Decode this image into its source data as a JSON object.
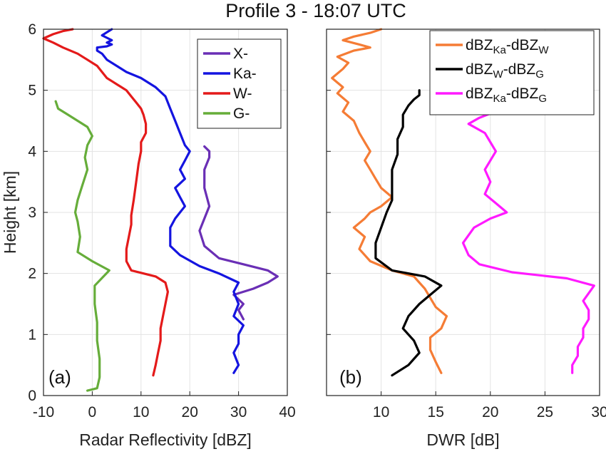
{
  "title": "Profile 3 - 18:07 UTC",
  "ylabel": "Height [km]",
  "colors": {
    "X": "#6a2fb5",
    "Ka": "#1414e0",
    "W": "#e41a1a",
    "G": "#66ad3a",
    "dwr_ka_w": "#f57c35",
    "dwr_w_g": "#000000",
    "dwr_ka_g": "#ff1aff"
  },
  "chart_data": [
    {
      "type": "line",
      "panel_label": "(a)",
      "xlabel": "Radar Reflectivity [dBZ]",
      "ylabel": "Height [km]",
      "xlim": [
        -10,
        40
      ],
      "ylim": [
        0,
        6
      ],
      "xticks": [
        "-10",
        "0",
        "10",
        "20",
        "30",
        "40"
      ],
      "yticks": [
        "0",
        "1",
        "2",
        "3",
        "4",
        "5",
        "6"
      ],
      "grid": true,
      "legend_position": "top-right",
      "series": [
        {
          "name": "X-",
          "color": "#6a2fb5",
          "x": [
            31,
            30,
            31,
            29,
            33,
            36,
            38,
            36,
            31,
            26,
            23,
            22,
            23,
            24,
            23,
            23,
            24,
            24,
            23
          ],
          "y": [
            1.25,
            1.4,
            1.5,
            1.65,
            1.75,
            1.85,
            1.95,
            2.05,
            2.15,
            2.25,
            2.45,
            2.7,
            2.9,
            3.1,
            3.4,
            3.7,
            3.9,
            4.0,
            4.08
          ]
        },
        {
          "name": "Ka-",
          "color": "#1414e0",
          "x": [
            29,
            30,
            29,
            30,
            30,
            31,
            29,
            30,
            29,
            30,
            26,
            22,
            18,
            16,
            16,
            16,
            17,
            18,
            19,
            18,
            17,
            19,
            18,
            19,
            20,
            19,
            18,
            17,
            16,
            15,
            13,
            10,
            7,
            5,
            3,
            2,
            1,
            1,
            3,
            4,
            3,
            4,
            3,
            2,
            3,
            4
          ],
          "y": [
            0.37,
            0.5,
            0.7,
            0.85,
            1.0,
            1.15,
            1.3,
            1.5,
            1.7,
            1.85,
            2.0,
            2.12,
            2.3,
            2.45,
            2.6,
            2.75,
            2.9,
            3.0,
            3.1,
            3.25,
            3.4,
            3.55,
            3.7,
            3.85,
            4.0,
            4.1,
            4.3,
            4.5,
            4.7,
            4.9,
            5.05,
            5.2,
            5.3,
            5.4,
            5.5,
            5.6,
            5.65,
            5.7,
            5.72,
            5.75,
            5.78,
            5.82,
            5.86,
            5.9,
            5.95,
            6.0
          ]
        },
        {
          "name": "W-",
          "color": "#e41a1a",
          "x": [
            12.5,
            13,
            13.5,
            14,
            14,
            14.5,
            15,
            15.5,
            15,
            13,
            8,
            7,
            7,
            7.5,
            8,
            8,
            8.5,
            9,
            9.5,
            10,
            10,
            11,
            11,
            10.5,
            10,
            9,
            8,
            7,
            6,
            5,
            4,
            3,
            2,
            1,
            -1,
            -3,
            -6,
            -8,
            -10,
            -8,
            -6,
            -4
          ],
          "y": [
            0.33,
            0.5,
            0.7,
            0.9,
            1.1,
            1.3,
            1.5,
            1.7,
            1.85,
            1.95,
            2.05,
            2.2,
            2.4,
            2.6,
            2.8,
            2.95,
            3.2,
            3.5,
            3.8,
            4.0,
            4.15,
            4.3,
            4.45,
            4.6,
            4.7,
            4.8,
            4.9,
            5.0,
            5.05,
            5.1,
            5.15,
            5.2,
            5.3,
            5.4,
            5.5,
            5.6,
            5.7,
            5.78,
            5.85,
            5.92,
            5.97,
            6.0
          ]
        },
        {
          "name": "G-",
          "color": "#66ad3a",
          "x": [
            -1,
            1,
            1.5,
            1.5,
            1,
            1,
            0.5,
            0.5,
            3.5,
            0,
            -3,
            -2.5,
            -3,
            -3.5,
            -3,
            -2,
            -1,
            -1.5,
            -1,
            0,
            -1,
            -3,
            -5,
            -7,
            -7.5
          ],
          "y": [
            0.08,
            0.12,
            0.3,
            0.6,
            0.9,
            1.2,
            1.5,
            1.8,
            2.05,
            2.2,
            2.35,
            2.6,
            2.85,
            3.0,
            3.2,
            3.45,
            3.7,
            3.9,
            4.1,
            4.25,
            4.4,
            4.5,
            4.6,
            4.7,
            4.82
          ]
        }
      ]
    },
    {
      "type": "line",
      "panel_label": "(b)",
      "xlabel": "DWR [dB]",
      "ylabel": "",
      "xlim": [
        5,
        30
      ],
      "ylim": [
        0,
        6
      ],
      "xticks": [
        "10",
        "15",
        "20",
        "25",
        "30"
      ],
      "yticks": [
        "0",
        "1",
        "2",
        "3",
        "4",
        "5",
        "6"
      ],
      "grid": true,
      "legend_position": "top-right",
      "series": [
        {
          "name": "dBZKa-dBZW",
          "name_parts": [
            "dBZ",
            "Ka",
            "-dBZ",
            "W"
          ],
          "color": "#f57c35",
          "x": [
            15.5,
            15,
            14.5,
            14.5,
            15.5,
            16,
            15,
            14.5,
            14,
            13.5,
            13,
            11,
            9,
            8,
            8.5,
            7.5,
            8.5,
            9,
            10,
            11,
            10,
            9.5,
            9,
            8.5,
            9,
            8.5,
            8,
            7.5,
            6.5,
            7,
            6,
            6.5,
            5.5,
            6.5,
            7,
            6,
            7.5,
            9,
            8,
            6.5,
            7.5,
            9,
            10
          ],
          "y": [
            0.37,
            0.55,
            0.75,
            0.95,
            1.1,
            1.3,
            1.45,
            1.6,
            1.75,
            1.85,
            1.95,
            2.05,
            2.2,
            2.4,
            2.6,
            2.75,
            2.9,
            3.0,
            3.1,
            3.25,
            3.4,
            3.55,
            3.7,
            3.85,
            4.0,
            4.15,
            4.3,
            4.5,
            4.65,
            4.8,
            4.95,
            5.05,
            5.2,
            5.35,
            5.45,
            5.55,
            5.65,
            5.7,
            5.75,
            5.82,
            5.88,
            5.94,
            6.0
          ]
        },
        {
          "name": "dBZW-dBZG",
          "name_parts": [
            "dBZ",
            "W",
            "-dBZ",
            "G"
          ],
          "color": "#000000",
          "x": [
            11,
            12.5,
            13.5,
            13,
            12,
            12.5,
            13.5,
            14.5,
            15.5,
            14,
            11,
            9.5,
            9.5,
            10,
            10.5,
            11,
            11,
            11,
            11.5,
            11.5,
            12,
            12,
            12.5,
            13,
            13.5,
            13.5,
            13.5
          ],
          "y": [
            0.33,
            0.5,
            0.7,
            0.9,
            1.1,
            1.3,
            1.5,
            1.65,
            1.8,
            1.95,
            2.05,
            2.25,
            2.5,
            2.75,
            3.0,
            3.2,
            3.45,
            3.7,
            3.95,
            4.2,
            4.4,
            4.6,
            4.75,
            4.85,
            4.92,
            4.97,
            5.0
          ]
        },
        {
          "name": "dBZKa-dBZG",
          "name_parts": [
            "dBZ",
            "Ka",
            "-dBZ",
            "G"
          ],
          "color": "#ff1aff",
          "x": [
            27.5,
            27.5,
            28,
            28,
            28.5,
            28.5,
            29,
            29,
            28.5,
            29.5,
            27,
            22,
            19,
            18,
            17.5,
            18.5,
            20,
            21.5,
            20.5,
            19.5,
            20,
            19.5,
            20,
            20.5,
            20,
            19.5,
            18,
            19,
            20,
            18,
            19
          ],
          "y": [
            0.37,
            0.5,
            0.65,
            0.8,
            0.95,
            1.1,
            1.25,
            1.4,
            1.55,
            1.8,
            1.92,
            2.02,
            2.15,
            2.3,
            2.5,
            2.75,
            2.9,
            3.0,
            3.15,
            3.3,
            3.5,
            3.7,
            3.85,
            4.0,
            4.15,
            4.3,
            4.45,
            4.55,
            4.62,
            4.7,
            4.8
          ]
        }
      ]
    }
  ]
}
